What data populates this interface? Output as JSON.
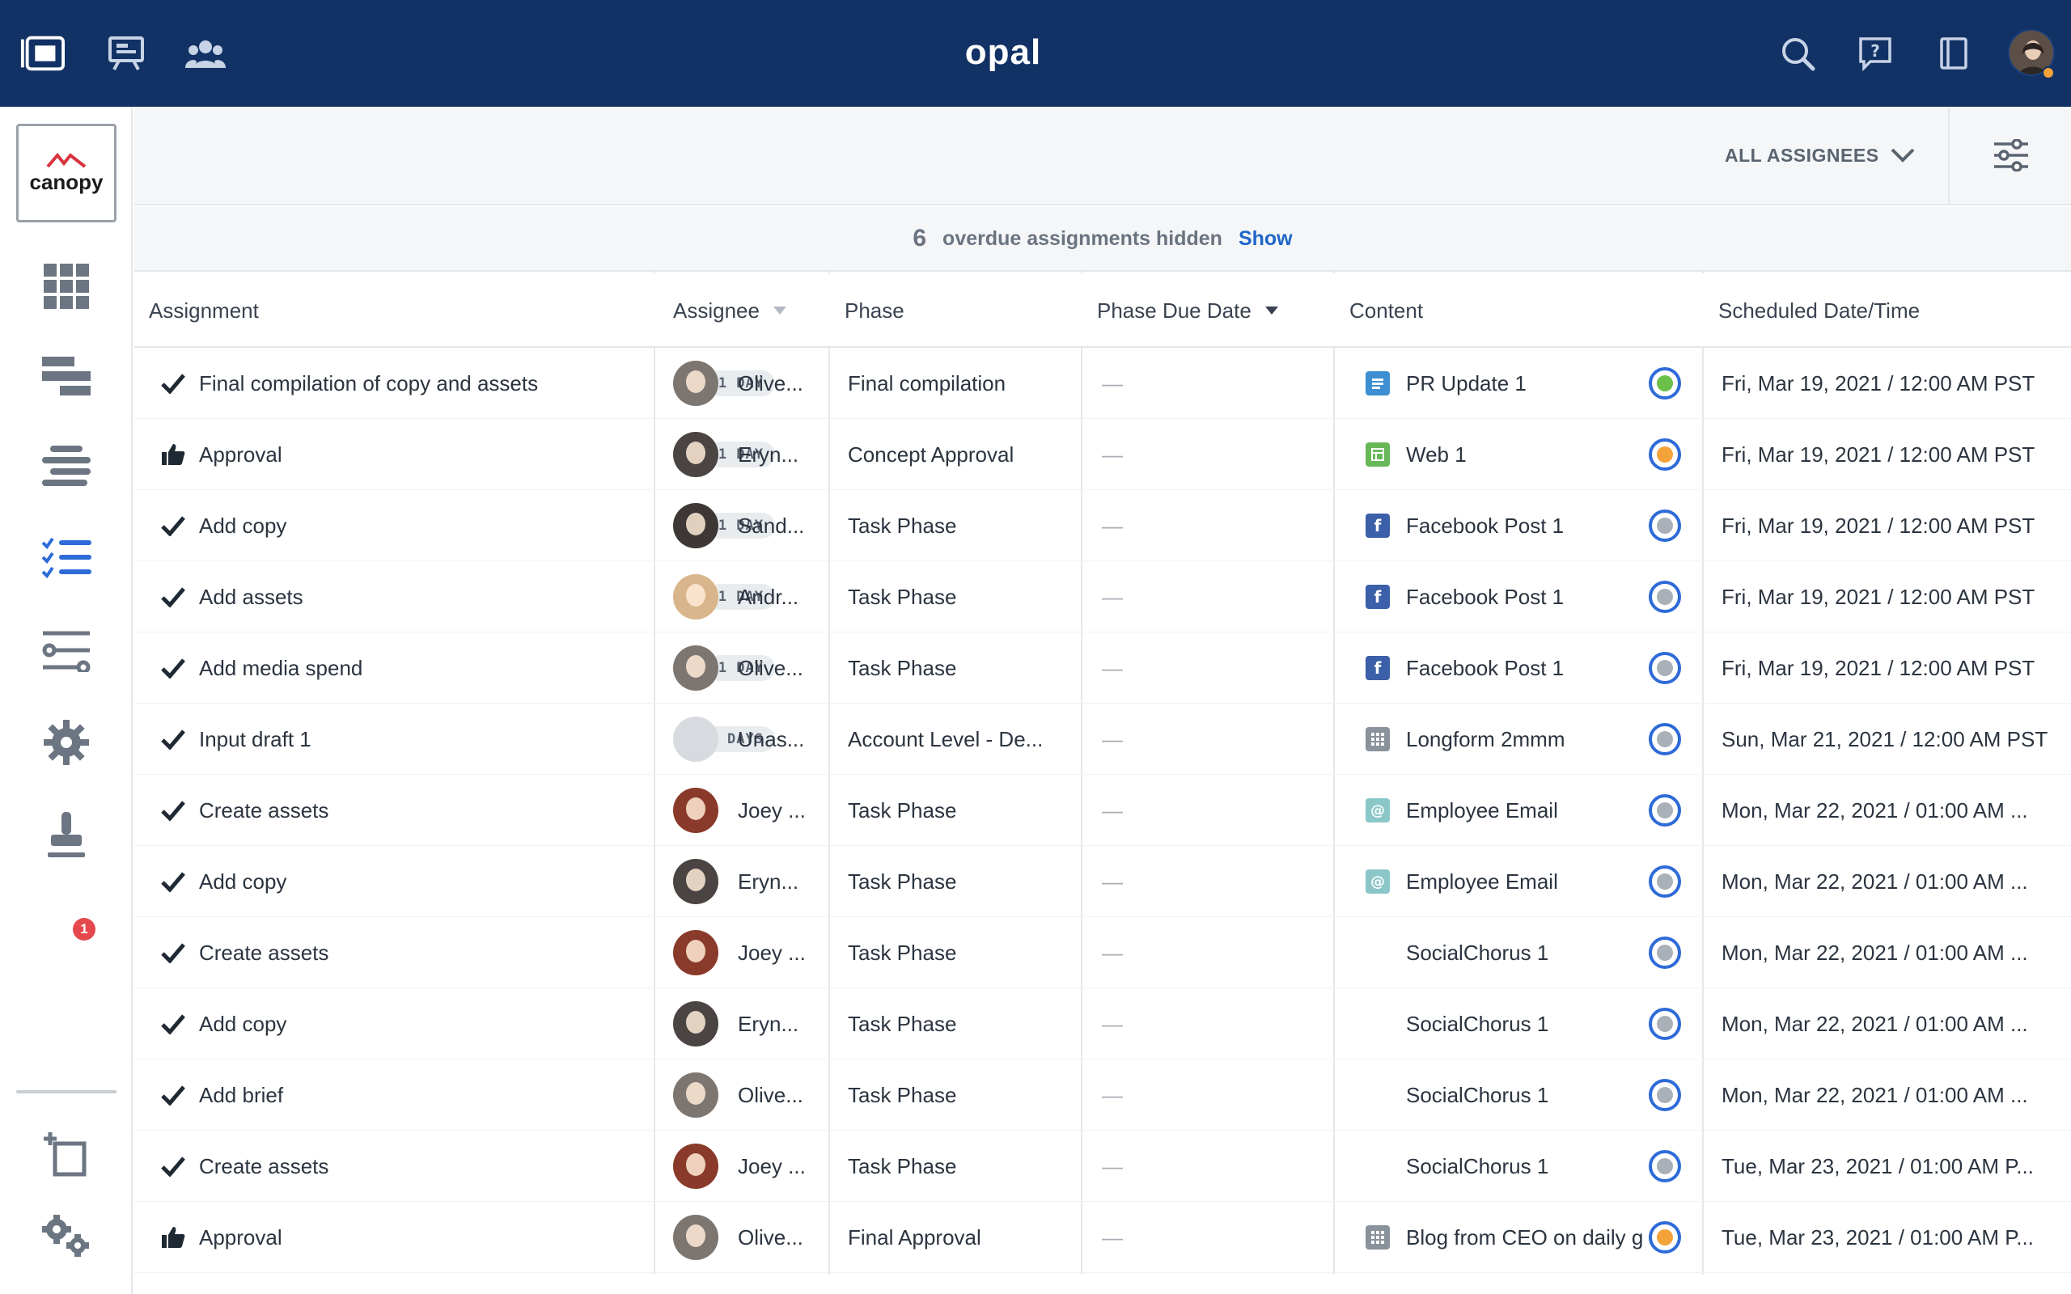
{
  "app": {
    "brand": "opal",
    "workspace_logo": "canopy",
    "top_icons": [
      "dashboard-icon",
      "presentation-icon",
      "team-icon"
    ],
    "top_right_icons": [
      "search-icon",
      "help-icon",
      "book-icon"
    ],
    "notification_count": "1"
  },
  "filter": {
    "assignees_label": "ALL ASSIGNEES"
  },
  "overdue": {
    "count": "6",
    "message": "overdue assignments hidden",
    "show_label": "Show"
  },
  "table": {
    "headers": {
      "assignment": "Assignment",
      "assignee": "Assignee",
      "phase": "Phase",
      "phase_due": "Phase Due Date",
      "content": "Content",
      "scheduled": "Scheduled Date/Time"
    },
    "rows": [
      {
        "type": "check",
        "title": "Final compilation of copy and assets",
        "badge": "1 DAY",
        "avatar": "p1",
        "assignee": "Olive...",
        "phase": "Final compilation",
        "due": "—",
        "content_icon": "blue",
        "content": "PR Update 1",
        "status_color": "#6cc04a",
        "scheduled": "Fri, Mar 19, 2021 / 12:00 AM PST"
      },
      {
        "type": "thumb",
        "title": "Approval",
        "badge": "1 DAY",
        "avatar": "p2",
        "assignee": "Eryn...",
        "phase": "Concept Approval",
        "due": "—",
        "content_icon": "green",
        "content": "Web 1",
        "status_color": "#f3a33a",
        "scheduled": "Fri, Mar 19, 2021 / 12:00 AM PST"
      },
      {
        "type": "check",
        "title": "Add copy",
        "badge": "1 DAY",
        "avatar": "p3",
        "assignee": "Sand...",
        "phase": "Task Phase",
        "due": "—",
        "content_icon": "fb",
        "content": "Facebook Post 1",
        "status_color": "#a9b0b8",
        "scheduled": "Fri, Mar 19, 2021 / 12:00 AM PST"
      },
      {
        "type": "check",
        "title": "Add assets",
        "badge": "1 DAY",
        "avatar": "p4",
        "assignee": "Andr...",
        "phase": "Task Phase",
        "due": "—",
        "content_icon": "fb",
        "content": "Facebook Post 1",
        "status_color": "#a9b0b8",
        "scheduled": "Fri, Mar 19, 2021 / 12:00 AM PST"
      },
      {
        "type": "check",
        "title": "Add media spend",
        "badge": "1 DAY",
        "avatar": "p1",
        "assignee": "Olive...",
        "phase": "Task Phase",
        "due": "—",
        "content_icon": "fb",
        "content": "Facebook Post 1",
        "status_color": "#a9b0b8",
        "scheduled": "Fri, Mar 19, 2021 / 12:00 AM PST"
      },
      {
        "type": "check",
        "title": "Input draft 1",
        "badge": "3 DAYS",
        "avatar": "p0",
        "assignee": "Unas...",
        "phase": "Account Level - De...",
        "due": "—",
        "content_icon": "grid",
        "content": "Longform 2mmm",
        "status_color": "#a9b0b8",
        "scheduled": "Sun, Mar 21, 2021 / 12:00 AM PST"
      },
      {
        "type": "check",
        "title": "Create assets",
        "badge": "",
        "avatar": "p5",
        "assignee": "Joey ...",
        "phase": "Task Phase",
        "due": "—",
        "content_icon": "mail",
        "content": "Employee Email",
        "status_color": "#a9b0b8",
        "scheduled": "Mon, Mar 22, 2021 / 01:00 AM ..."
      },
      {
        "type": "check",
        "title": "Add copy",
        "badge": "",
        "avatar": "p2",
        "assignee": "Eryn...",
        "phase": "Task Phase",
        "due": "—",
        "content_icon": "mail",
        "content": "Employee Email",
        "status_color": "#a9b0b8",
        "scheduled": "Mon, Mar 22, 2021 / 01:00 AM ..."
      },
      {
        "type": "check",
        "title": "Create assets",
        "badge": "",
        "avatar": "p5",
        "assignee": "Joey ...",
        "phase": "Task Phase",
        "due": "—",
        "content_icon": "none",
        "content": "SocialChorus 1",
        "status_color": "#a9b0b8",
        "scheduled": "Mon, Mar 22, 2021 / 01:00 AM ..."
      },
      {
        "type": "check",
        "title": "Add copy",
        "badge": "",
        "avatar": "p2",
        "assignee": "Eryn...",
        "phase": "Task Phase",
        "due": "—",
        "content_icon": "none",
        "content": "SocialChorus 1",
        "status_color": "#a9b0b8",
        "scheduled": "Mon, Mar 22, 2021 / 01:00 AM ..."
      },
      {
        "type": "check",
        "title": "Add brief",
        "badge": "",
        "avatar": "p1",
        "assignee": "Olive...",
        "phase": "Task Phase",
        "due": "—",
        "content_icon": "none",
        "content": "SocialChorus 1",
        "status_color": "#a9b0b8",
        "scheduled": "Mon, Mar 22, 2021 / 01:00 AM ..."
      },
      {
        "type": "check",
        "title": "Create assets",
        "badge": "",
        "avatar": "p5",
        "assignee": "Joey ...",
        "phase": "Task Phase",
        "due": "—",
        "content_icon": "none",
        "content": "SocialChorus 1",
        "status_color": "#a9b0b8",
        "scheduled": "Tue, Mar 23, 2021 / 01:00 AM P..."
      },
      {
        "type": "thumb",
        "title": "Approval",
        "badge": "",
        "avatar": "p1",
        "assignee": "Olive...",
        "phase": "Final Approval",
        "due": "—",
        "content_icon": "grid",
        "content": "Blog from CEO on daily g",
        "status_color": "#f3a33a",
        "scheduled": "Tue, Mar 23, 2021 / 01:00 AM P..."
      }
    ]
  }
}
